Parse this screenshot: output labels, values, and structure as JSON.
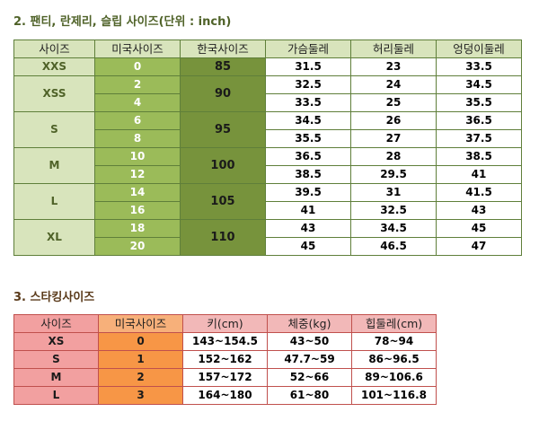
{
  "section1": {
    "title": "2. 팬티, 란제리, 슬립 사이즈(단위 : inch)",
    "headers": [
      "사이즈",
      "미국사이즈",
      "한국사이즈",
      "가슴둘레",
      "허리둘레",
      "엉덩이둘레"
    ],
    "groups": [
      {
        "size": "XXS",
        "kr": "85",
        "rows": [
          {
            "us": "0",
            "chest": "31.5",
            "waist": "23",
            "hip": "33.5"
          }
        ]
      },
      {
        "size": "XSS",
        "kr": "90",
        "rows": [
          {
            "us": "2",
            "chest": "32.5",
            "waist": "24",
            "hip": "34.5"
          },
          {
            "us": "4",
            "chest": "33.5",
            "waist": "25",
            "hip": "35.5"
          }
        ]
      },
      {
        "size": "S",
        "kr": "95",
        "rows": [
          {
            "us": "6",
            "chest": "34.5",
            "waist": "26",
            "hip": "36.5"
          },
          {
            "us": "8",
            "chest": "35.5",
            "waist": "27",
            "hip": "37.5"
          }
        ]
      },
      {
        "size": "M",
        "kr": "100",
        "rows": [
          {
            "us": "10",
            "chest": "36.5",
            "waist": "28",
            "hip": "38.5"
          },
          {
            "us": "12",
            "chest": "38.5",
            "waist": "29.5",
            "hip": "41"
          }
        ]
      },
      {
        "size": "L",
        "kr": "105",
        "rows": [
          {
            "us": "14",
            "chest": "39.5",
            "waist": "31",
            "hip": "41.5"
          },
          {
            "us": "16",
            "chest": "41",
            "waist": "32.5",
            "hip": "43"
          }
        ]
      },
      {
        "size": "XL",
        "kr": "110",
        "rows": [
          {
            "us": "18",
            "chest": "43",
            "waist": "34.5",
            "hip": "45"
          },
          {
            "us": "20",
            "chest": "45",
            "waist": "46.5",
            "hip": "47"
          }
        ]
      }
    ]
  },
  "section2": {
    "title": "3. 스타킹사이즈",
    "headers": [
      "사이즈",
      "미국사이즈",
      "키(cm)",
      "체중(kg)",
      "힙둘레(cm)"
    ],
    "rows": [
      {
        "size": "XS",
        "us": "0",
        "height": "143~154.5",
        "weight": "43~50",
        "hip": "78~94"
      },
      {
        "size": "S",
        "us": "1",
        "height": "152~162",
        "weight": "47.7~59",
        "hip": "86~96.5"
      },
      {
        "size": "M",
        "us": "2",
        "height": "157~172",
        "weight": "52~66",
        "hip": "89~106.6"
      },
      {
        "size": "L",
        "us": "3",
        "height": "164~180",
        "weight": "61~80",
        "hip": "101~116.8"
      }
    ]
  },
  "colors": {
    "green_light": "#d8e4bc",
    "green_mid": "#9bbb59",
    "green_dark": "#77933c",
    "pink": "#f2a0a0",
    "orange": "#f79646"
  }
}
